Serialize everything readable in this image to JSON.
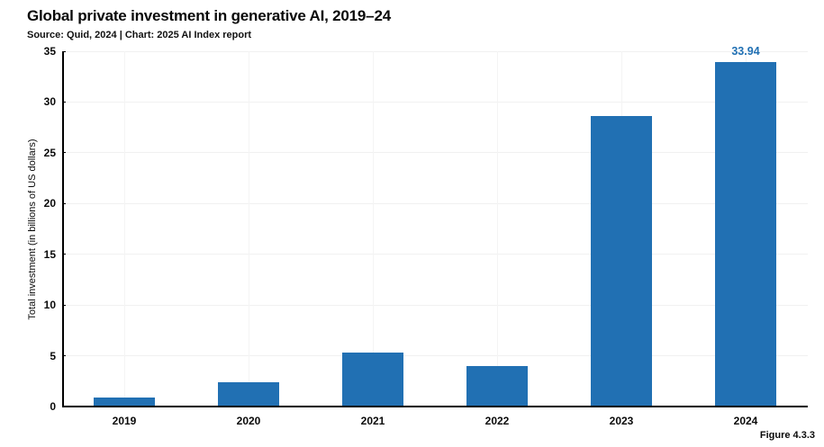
{
  "header": {
    "title": "Global private investment in generative AI, 2019–24",
    "source_line": "Source: Quid, 2024 | Chart: 2025 AI Index report"
  },
  "footer": {
    "figure_label": "Figure 4.3.3"
  },
  "chart_data": {
    "type": "bar",
    "title": "Global private investment in generative AI, 2019–24",
    "categories": [
      "2019",
      "2020",
      "2021",
      "2022",
      "2023",
      "2024"
    ],
    "values": [
      0.9,
      2.4,
      5.3,
      4.0,
      28.6,
      33.94
    ],
    "value_labels": [
      "",
      "",
      "",
      "",
      "",
      "33.94"
    ],
    "xlabel": "",
    "ylabel": "Total investment (in billions of US dollars)",
    "ylim": [
      0,
      35
    ],
    "ytick_step": 5,
    "grid": true,
    "legend": "none",
    "bar_color": "#2170b3",
    "value_label_color": "#2170b3"
  }
}
